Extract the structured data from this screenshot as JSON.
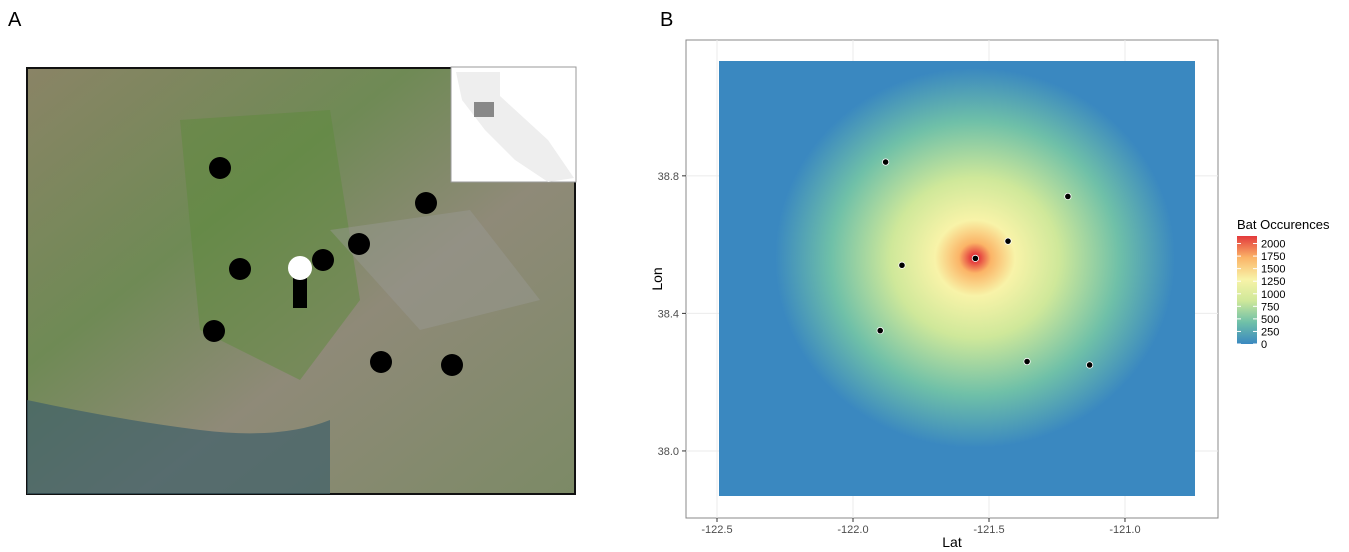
{
  "panels": {
    "a": {
      "label": "A"
    },
    "b": {
      "label": "B"
    }
  },
  "chart_data": {
    "type": "scatter",
    "x_label": "Lat",
    "y_label": "Lon",
    "xlim": [
      -122.614,
      -120.658
    ],
    "ylim": [
      37.805,
      39.195
    ],
    "xticks": [
      -122.5,
      {
        "value": -122,
        "label": "-122.0"
      },
      -121.5,
      {
        "value": -121,
        "label": "-121.0"
      }
    ],
    "yticks": [
      {
        "value": 38,
        "label": "38.0"
      },
      38.4,
      38.8
    ],
    "grid": true,
    "x": [
      -121.88,
      -121.21,
      -121.43,
      -121.55,
      -121.82,
      -121.9,
      -121.36,
      -121.13
    ],
    "y": [
      38.84,
      38.74,
      38.61,
      38.56,
      38.54,
      38.35,
      38.26,
      38.25
    ],
    "point_color": "#000000",
    "colorbar": {
      "title": "Bat Occurences",
      "lim": [
        0,
        2150
      ],
      "ticks": [
        0,
        250,
        500,
        750,
        1000,
        1250,
        1500,
        1750,
        2000
      ],
      "colors": [
        "#3a88c0",
        "#6fc0a8",
        "#cfe89a",
        "#f8f3a8",
        "#fbb467",
        "#e3393c"
      ]
    }
  }
}
